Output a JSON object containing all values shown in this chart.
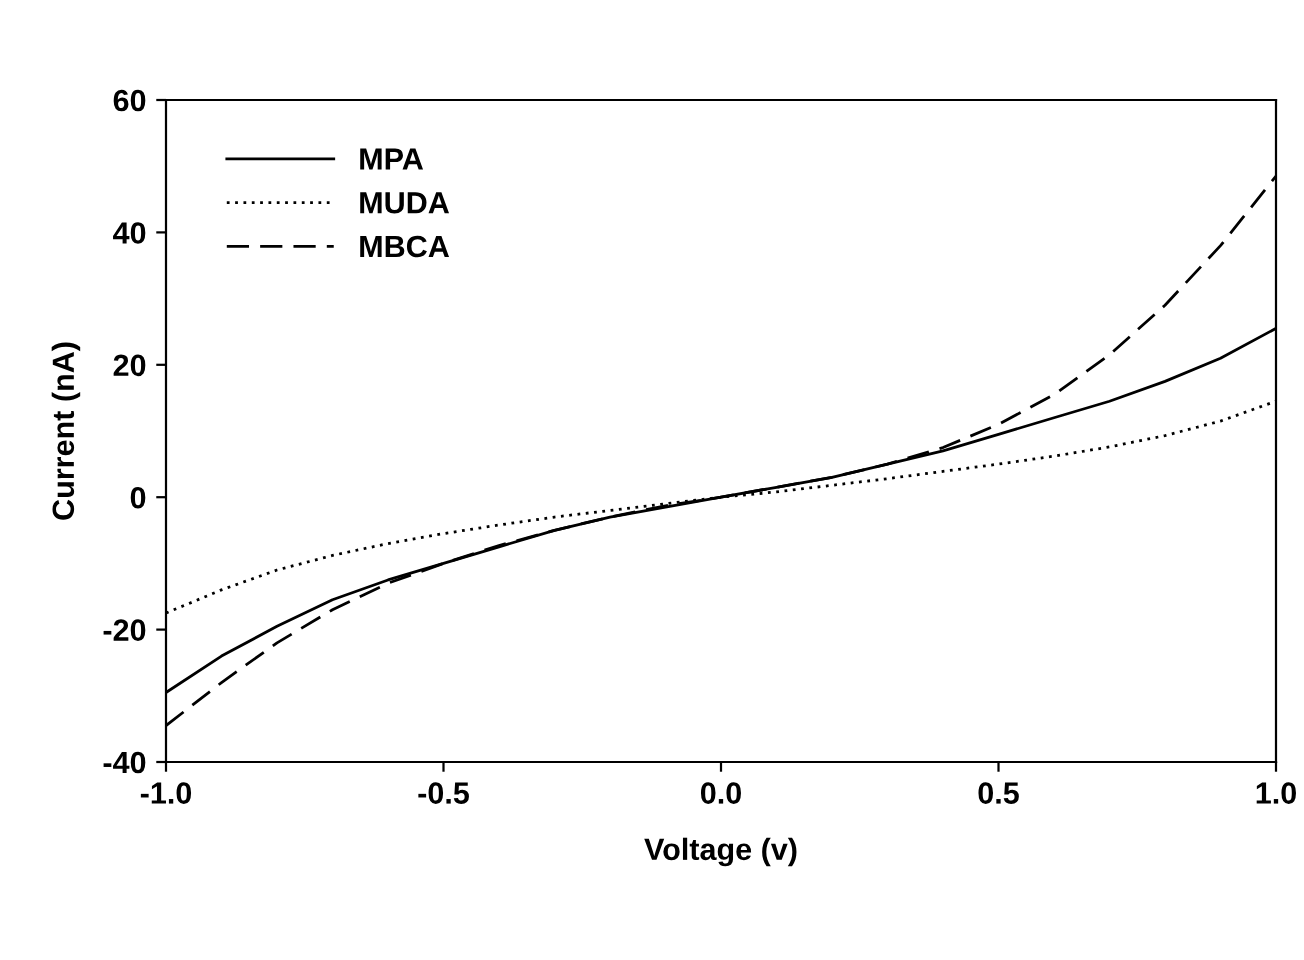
{
  "chart_data": {
    "type": "line",
    "xlabel": "Voltage (v)",
    "ylabel": "Current (nA)",
    "x": [
      -1.0,
      -0.9,
      -0.8,
      -0.7,
      -0.6,
      -0.5,
      -0.4,
      -0.3,
      -0.2,
      -0.1,
      0.0,
      0.1,
      0.2,
      0.3,
      0.4,
      0.5,
      0.6,
      0.7,
      0.8,
      0.9,
      1.0
    ],
    "series": [
      {
        "name": "MPA",
        "color": "#000000",
        "line_style": "solid",
        "values": [
          -29.5,
          -24,
          -19.5,
          -15.5,
          -12.5,
          -10,
          -7.5,
          -5,
          -3,
          -1.5,
          0,
          1.5,
          3,
          5,
          7,
          9.5,
          12,
          14.5,
          17.5,
          21,
          25.5
        ]
      },
      {
        "name": "MUDA",
        "color": "#000000",
        "line_style": "dotted",
        "values": [
          -17.5,
          -14,
          -11,
          -8.8,
          -7,
          -5.5,
          -4.2,
          -3,
          -2,
          -1,
          0,
          0.8,
          1.8,
          2.8,
          3.9,
          5,
          6.2,
          7.6,
          9.3,
          11.5,
          14.5
        ]
      },
      {
        "name": "MBCA",
        "color": "#000000",
        "line_style": "dashed",
        "values": [
          -34.5,
          -28,
          -22,
          -17,
          -13,
          -10,
          -7.3,
          -5,
          -3,
          -1.3,
          0,
          1.5,
          3,
          5,
          7.5,
          11,
          15.5,
          21.5,
          29,
          38,
          48.5
        ]
      }
    ],
    "xlim": [
      -1.0,
      1.0
    ],
    "ylim": [
      -40,
      60
    ],
    "xticks": [
      {
        "value": -1.0,
        "label": "-1.0"
      },
      {
        "value": -0.5,
        "label": "-0.5"
      },
      {
        "value": 0.0,
        "label": "0.0"
      },
      {
        "value": 0.5,
        "label": "0.5"
      },
      {
        "value": 1.0,
        "label": "1.0"
      }
    ],
    "yticks": [
      -40,
      -20,
      0,
      20,
      40,
      60
    ],
    "grid": false,
    "legend": "top left",
    "marker": "none"
  }
}
